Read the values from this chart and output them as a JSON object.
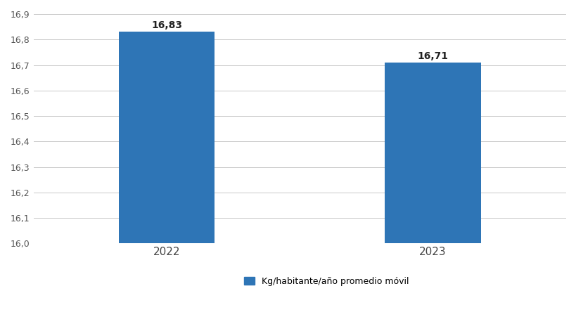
{
  "categories": [
    "2022",
    "2023"
  ],
  "values": [
    16.83,
    16.71
  ],
  "bar_color": "#2E75B6",
  "bar_width": 0.18,
  "ylim": [
    16.0,
    16.9
  ],
  "yticks": [
    16.0,
    16.1,
    16.2,
    16.3,
    16.4,
    16.5,
    16.6,
    16.7,
    16.8,
    16.9
  ],
  "legend_label": "Kg/habitante/año promedio móvil",
  "background_color": "#ffffff",
  "grid_color": "#c8c8c8",
  "tick_fontsize": 9,
  "legend_fontsize": 9,
  "value_fontsize": 10,
  "value_fontweight": "bold",
  "x_positions": [
    0.25,
    0.75
  ]
}
